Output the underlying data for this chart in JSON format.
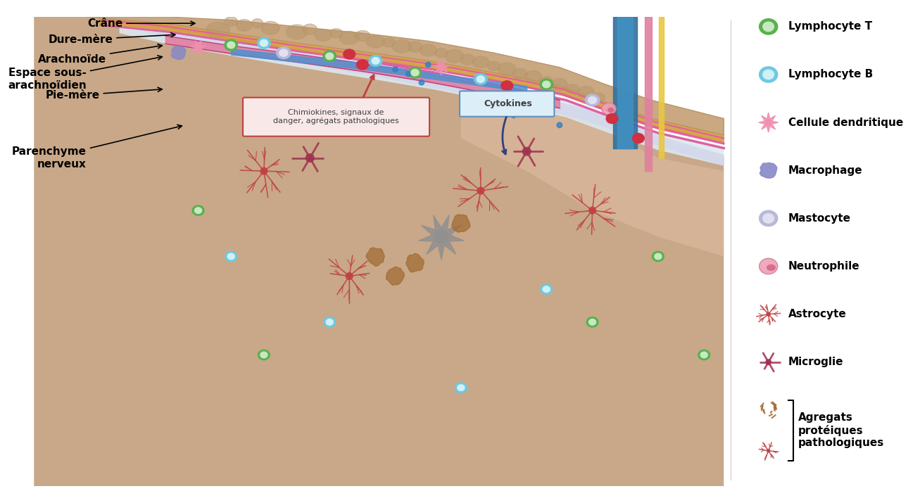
{
  "background_color": "#ffffff",
  "figsize": [
    13.07,
    7.15
  ],
  "dpi": 100,
  "labels": {
    "crane": "Crâne",
    "dure_mere": "Dure-mère",
    "arachnoide": "Arachnoïde",
    "espace_sous": "Espace sous-\narachnoïdien",
    "pie_mere": "Pie-mère",
    "parenchyme": "Parenchyme\nnerveux",
    "cytokines": "Cytokines",
    "chimiokines": "Chimiokines, signaux de\ndanger, agrégats pathologiques"
  },
  "colors": {
    "crane_bone": "#c9a882",
    "crane_bone_dark": "#b8956a",
    "dure_mere": "#d4a040",
    "dure_mere_border": "#b88020",
    "arachnoide_space": "#dce8f0",
    "arachnoide_border": "#e060a0",
    "pia_border": "#8040c0",
    "brain": "#c8a888",
    "brain_light": "#ddbca0",
    "blood_vessel_blue": "#4090c0",
    "blood_vessel_red": "#d03040",
    "blood_vessel_pink": "#e080a0",
    "lymph_vessel_yellow": "#e8c840",
    "cytokines_box_fill": "#dceef8",
    "cytokines_box_border": "#6090c0",
    "chimiokines_box_border": "#c04040",
    "chimiokines_box_fill": "#f8e8e8",
    "lt_outer": "#5ab050",
    "lt_inner": "#c8e8c0",
    "lb_outer": "#70c8e0",
    "lb_inner": "#d0f0f8",
    "dc_color": "#f090b0",
    "mac_color": "#8888c8",
    "mast_outer": "#b8b8d8",
    "mast_inner": "#e0e0f0",
    "neut_outer": "#f0a0b8",
    "neut_inner": "#d06080",
    "astro_color": "#c04040",
    "micro_color": "#a03050",
    "agg_brown": "#a06830",
    "agg_red": "#c04040"
  }
}
